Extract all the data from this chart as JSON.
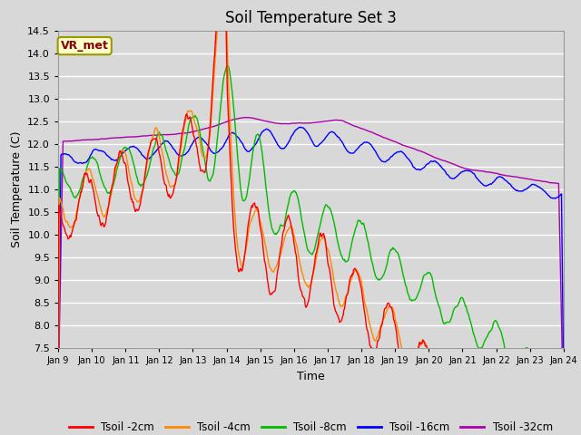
{
  "title": "Soil Temperature Set 3",
  "xlabel": "Time",
  "ylabel": "Soil Temperature (C)",
  "ylim": [
    7.5,
    14.5
  ],
  "xlim": [
    0,
    360
  ],
  "x_tick_labels": [
    "Jan 9",
    "Jan 10",
    "Jan 11",
    "Jan 12",
    "Jan 13",
    "Jan 14",
    "Jan 15",
    "Jan 16",
    "Jan 17",
    "Jan 18",
    "Jan 19",
    "Jan 20",
    "Jan 21",
    "Jan 22",
    "Jan 23",
    "Jan 24"
  ],
  "yticks": [
    7.5,
    8.0,
    8.5,
    9.0,
    9.5,
    10.0,
    10.5,
    11.0,
    11.5,
    12.0,
    12.5,
    13.0,
    13.5,
    14.0,
    14.5
  ],
  "series_colors": {
    "Tsoil -2cm": "#ff0000",
    "Tsoil -4cm": "#ff8800",
    "Tsoil -8cm": "#00bb00",
    "Tsoil -16cm": "#0000ff",
    "Tsoil -32cm": "#aa00aa"
  },
  "legend_label": "VR_met",
  "legend_box_facecolor": "#ffffcc",
  "legend_text_color": "#880000",
  "legend_edge_color": "#999900",
  "bg_color": "#d8d8d8",
  "plot_bg_color": "#d8d8d8",
  "grid_color": "#ffffff",
  "title_fontsize": 12,
  "axis_fontsize": 9,
  "tick_fontsize": 8
}
